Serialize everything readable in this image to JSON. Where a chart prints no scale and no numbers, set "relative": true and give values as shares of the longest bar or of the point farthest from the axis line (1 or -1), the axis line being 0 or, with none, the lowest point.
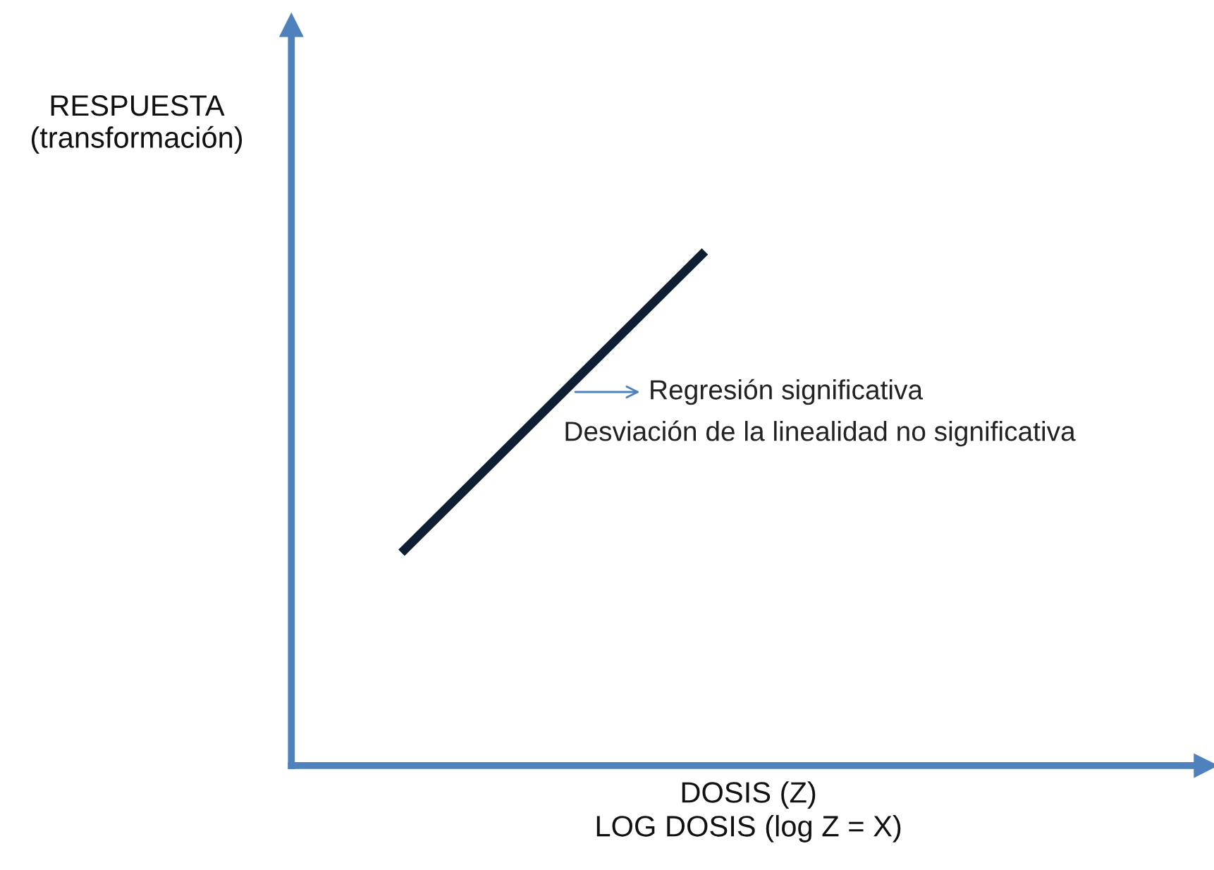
{
  "chart_data": {
    "type": "line",
    "relative": true,
    "xlabel": "DOSIS (Z)\nLOG DOSIS (log Z = X)",
    "ylabel": "RESPUESTA\n(transformación)",
    "categories": [
      null,
      null
    ],
    "series": [
      {
        "color": "#0f1f33",
        "values": [
          0.414,
          1
        ]
      }
    ],
    "annotations": [
      "Regresión significativa",
      "Desviación de la linealidad no significativa"
    ]
  }
}
